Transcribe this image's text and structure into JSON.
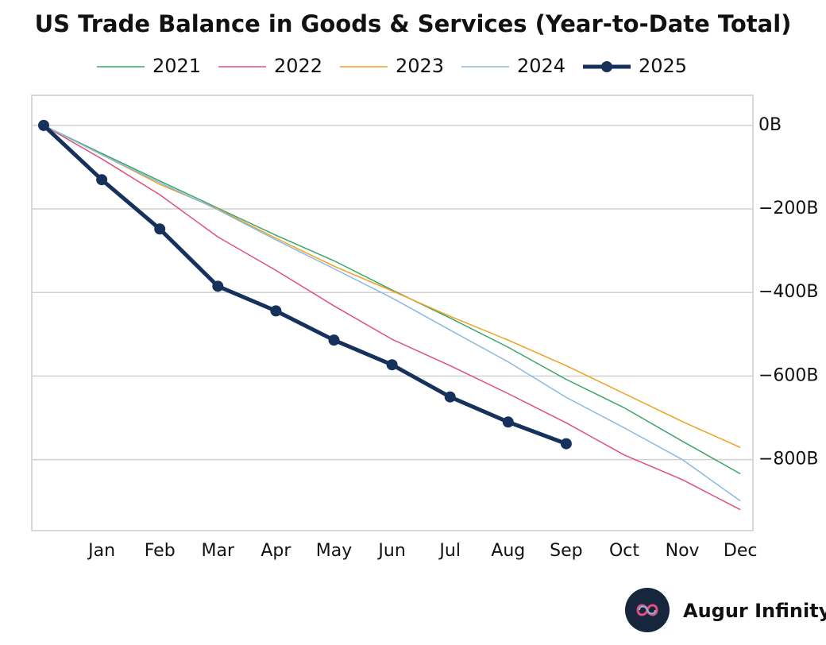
{
  "chart_data": {
    "type": "line",
    "title": "US Trade Balance in Goods & Services (Year-to-Date Total)",
    "categories": [
      null,
      "Jan",
      "Feb",
      "Mar",
      "Apr",
      "May",
      "Jun",
      "Jul",
      "Aug",
      "Sep",
      "Oct",
      "Nov",
      "Dec"
    ],
    "series": [
      {
        "name": "2021",
        "color": "#3aa66a",
        "width": 1.5,
        "values": [
          0,
          -67,
          -133,
          -198,
          -263,
          -324,
          -394,
          -461,
          -531,
          -608,
          -676,
          -756,
          -834
        ]
      },
      {
        "name": "2022",
        "color": "#e0507a",
        "width": 1.5,
        "values": [
          0,
          -80,
          -166,
          -267,
          -347,
          -432,
          -512,
          -575,
          -642,
          -712,
          -789,
          -848,
          -920
        ]
      },
      {
        "name": "2023",
        "color": "#f0a020",
        "width": 1.5,
        "values": [
          0,
          -70,
          -141,
          -200,
          -270,
          -337,
          -396,
          -457,
          -514,
          -575,
          -642,
          -709,
          -771
        ]
      },
      {
        "name": "2024",
        "color": "#8ab8e0",
        "width": 1.5,
        "values": [
          0,
          -70,
          -137,
          -202,
          -274,
          -343,
          -413,
          -490,
          -566,
          -651,
          -724,
          -800,
          -899
        ]
      },
      {
        "name": "2025",
        "color": "#16325c",
        "width": 5,
        "marker": true,
        "values": [
          0,
          -130,
          -248,
          -385,
          -444,
          -514,
          -573,
          -650,
          -710,
          -762,
          null,
          null,
          null
        ]
      }
    ],
    "ylim": [
      -970,
      72
    ],
    "yticks": [
      {
        "value": 0,
        "label": "0B"
      },
      {
        "value": -200,
        "label": "−200B"
      },
      {
        "value": -400,
        "label": "−400B"
      },
      {
        "value": -600,
        "label": "−600B"
      },
      {
        "value": -800,
        "label": "−800B"
      }
    ],
    "grid": true,
    "legend": "top"
  },
  "brand": "Augur Infinity"
}
